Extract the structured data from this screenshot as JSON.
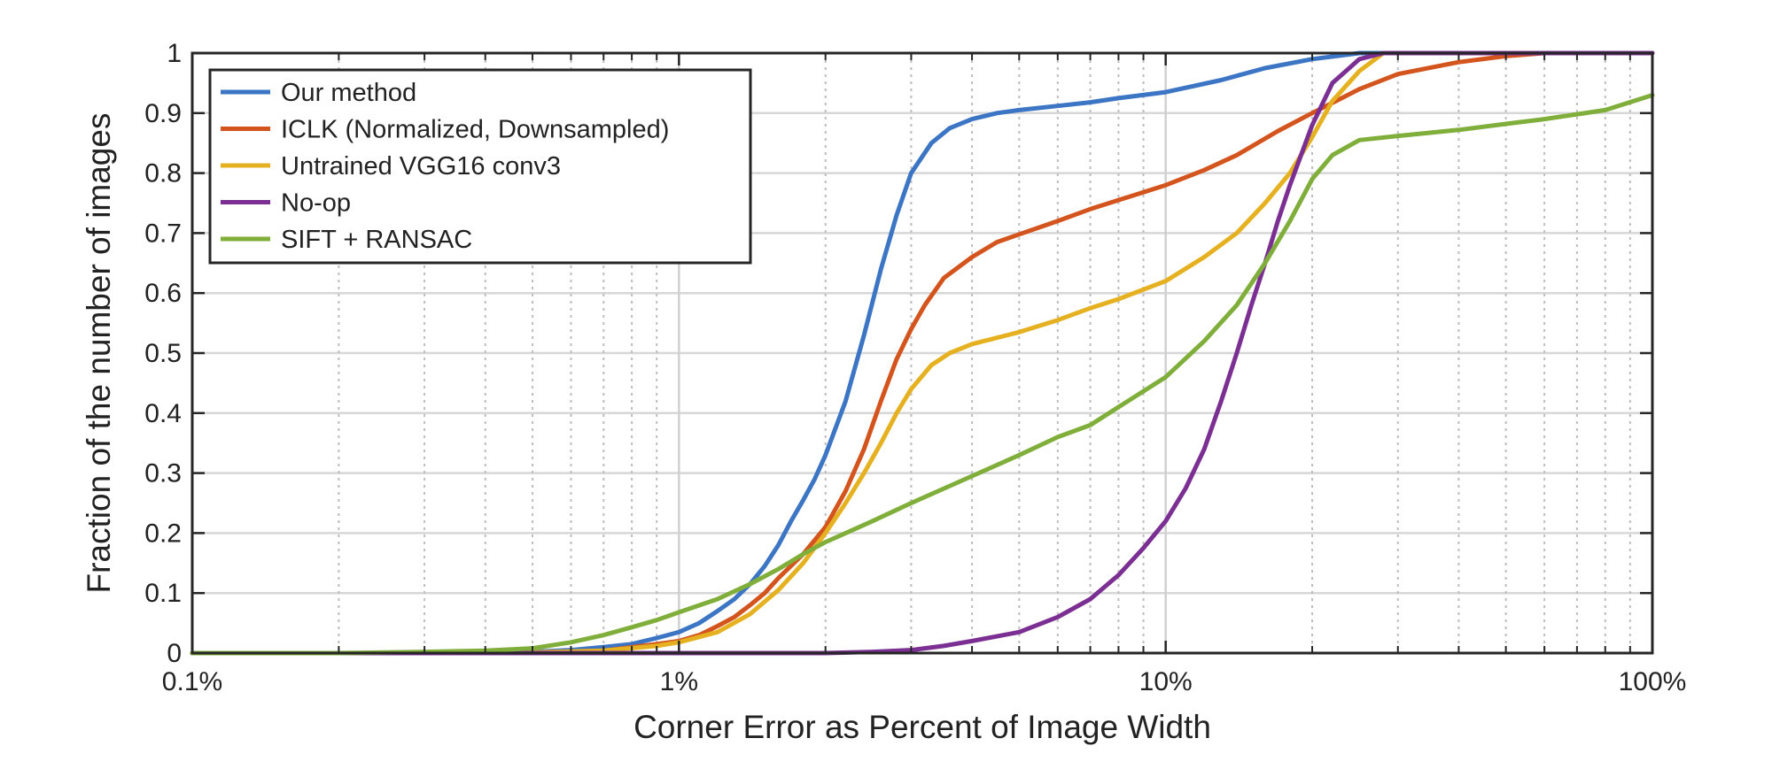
{
  "chart_data": {
    "type": "line",
    "title": "",
    "xlabel": "Corner Error as Percent of Image Width",
    "ylabel": "Fraction of the number of images",
    "xscale": "log",
    "xlim": [
      0.1,
      100
    ],
    "ylim": [
      0,
      1
    ],
    "xticks": [
      0.1,
      1,
      10,
      100
    ],
    "xtick_labels": [
      "0.1%",
      "1%",
      "10%",
      "100%"
    ],
    "yticks": [
      0,
      0.1,
      0.2,
      0.3,
      0.4,
      0.5,
      0.6,
      0.7,
      0.8,
      0.9,
      1
    ],
    "ytick_labels": [
      "0",
      "0.1",
      "0.2",
      "0.3",
      "0.4",
      "0.5",
      "0.6",
      "0.7",
      "0.8",
      "0.9",
      "1"
    ],
    "grid": true,
    "minor_grid": true,
    "legend_position": "top-left",
    "series": [
      {
        "name": "Our method",
        "color": "#3b75c4",
        "points": [
          [
            0.1,
            0
          ],
          [
            0.3,
            0
          ],
          [
            0.5,
            0.002
          ],
          [
            0.6,
            0.005
          ],
          [
            0.7,
            0.01
          ],
          [
            0.8,
            0.015
          ],
          [
            0.9,
            0.025
          ],
          [
            1.0,
            0.035
          ],
          [
            1.1,
            0.05
          ],
          [
            1.2,
            0.07
          ],
          [
            1.3,
            0.09
          ],
          [
            1.4,
            0.115
          ],
          [
            1.5,
            0.145
          ],
          [
            1.6,
            0.18
          ],
          [
            1.7,
            0.22
          ],
          [
            1.8,
            0.255
          ],
          [
            1.9,
            0.29
          ],
          [
            2.0,
            0.33
          ],
          [
            2.2,
            0.42
          ],
          [
            2.4,
            0.53
          ],
          [
            2.6,
            0.64
          ],
          [
            2.8,
            0.73
          ],
          [
            3.0,
            0.8
          ],
          [
            3.3,
            0.85
          ],
          [
            3.6,
            0.875
          ],
          [
            4.0,
            0.89
          ],
          [
            4.5,
            0.9
          ],
          [
            5,
            0.905
          ],
          [
            6,
            0.912
          ],
          [
            7,
            0.918
          ],
          [
            8,
            0.925
          ],
          [
            10,
            0.935
          ],
          [
            13,
            0.955
          ],
          [
            16,
            0.975
          ],
          [
            20,
            0.99
          ],
          [
            25,
            1.0
          ],
          [
            100,
            1.0
          ]
        ]
      },
      {
        "name": "ICLK (Normalized, Downsampled)",
        "color": "#d4541d",
        "points": [
          [
            0.1,
            0
          ],
          [
            0.3,
            0
          ],
          [
            0.5,
            0.001
          ],
          [
            0.7,
            0.004
          ],
          [
            0.9,
            0.015
          ],
          [
            1.0,
            0.02
          ],
          [
            1.1,
            0.03
          ],
          [
            1.2,
            0.045
          ],
          [
            1.3,
            0.06
          ],
          [
            1.4,
            0.08
          ],
          [
            1.5,
            0.1
          ],
          [
            1.6,
            0.125
          ],
          [
            1.8,
            0.165
          ],
          [
            2.0,
            0.21
          ],
          [
            2.2,
            0.27
          ],
          [
            2.4,
            0.34
          ],
          [
            2.6,
            0.42
          ],
          [
            2.8,
            0.49
          ],
          [
            3.0,
            0.54
          ],
          [
            3.2,
            0.58
          ],
          [
            3.5,
            0.625
          ],
          [
            4.0,
            0.66
          ],
          [
            4.5,
            0.685
          ],
          [
            5,
            0.698
          ],
          [
            6,
            0.72
          ],
          [
            7,
            0.74
          ],
          [
            8,
            0.755
          ],
          [
            10,
            0.78
          ],
          [
            12,
            0.805
          ],
          [
            14,
            0.83
          ],
          [
            17,
            0.87
          ],
          [
            20,
            0.9
          ],
          [
            25,
            0.94
          ],
          [
            30,
            0.965
          ],
          [
            40,
            0.985
          ],
          [
            50,
            0.995
          ],
          [
            60,
            1.0
          ],
          [
            100,
            1.0
          ]
        ]
      },
      {
        "name": "Untrained VGG16 conv3",
        "color": "#e6b120",
        "points": [
          [
            0.1,
            0
          ],
          [
            0.3,
            0
          ],
          [
            0.5,
            0.001
          ],
          [
            0.7,
            0.004
          ],
          [
            0.9,
            0.012
          ],
          [
            1.0,
            0.018
          ],
          [
            1.2,
            0.035
          ],
          [
            1.4,
            0.065
          ],
          [
            1.6,
            0.105
          ],
          [
            1.8,
            0.15
          ],
          [
            2.0,
            0.2
          ],
          [
            2.2,
            0.25
          ],
          [
            2.4,
            0.3
          ],
          [
            2.6,
            0.35
          ],
          [
            2.8,
            0.4
          ],
          [
            3.0,
            0.44
          ],
          [
            3.3,
            0.48
          ],
          [
            3.6,
            0.5
          ],
          [
            4.0,
            0.515
          ],
          [
            5,
            0.535
          ],
          [
            6,
            0.555
          ],
          [
            7,
            0.575
          ],
          [
            8,
            0.59
          ],
          [
            10,
            0.62
          ],
          [
            12,
            0.66
          ],
          [
            14,
            0.7
          ],
          [
            16,
            0.75
          ],
          [
            18,
            0.8
          ],
          [
            20,
            0.86
          ],
          [
            22,
            0.92
          ],
          [
            25,
            0.97
          ],
          [
            28,
            1.0
          ],
          [
            100,
            1.0
          ]
        ]
      },
      {
        "name": "No-op",
        "color": "#7b2f92",
        "points": [
          [
            0.1,
            0
          ],
          [
            2.0,
            0
          ],
          [
            2.5,
            0.002
          ],
          [
            3.0,
            0.005
          ],
          [
            3.5,
            0.012
          ],
          [
            4.0,
            0.02
          ],
          [
            5,
            0.035
          ],
          [
            6,
            0.06
          ],
          [
            7,
            0.09
          ],
          [
            8,
            0.13
          ],
          [
            9,
            0.175
          ],
          [
            10,
            0.22
          ],
          [
            11,
            0.275
          ],
          [
            12,
            0.34
          ],
          [
            13,
            0.42
          ],
          [
            14,
            0.5
          ],
          [
            15,
            0.58
          ],
          [
            16,
            0.65
          ],
          [
            17,
            0.72
          ],
          [
            18,
            0.78
          ],
          [
            20,
            0.88
          ],
          [
            22,
            0.95
          ],
          [
            25,
            0.99
          ],
          [
            28,
            1.0
          ],
          [
            100,
            1.0
          ]
        ]
      },
      {
        "name": "SIFT + RANSAC",
        "color": "#7faf3a",
        "points": [
          [
            0.1,
            0
          ],
          [
            0.2,
            0
          ],
          [
            0.3,
            0.002
          ],
          [
            0.4,
            0.004
          ],
          [
            0.5,
            0.008
          ],
          [
            0.6,
            0.018
          ],
          [
            0.7,
            0.03
          ],
          [
            0.8,
            0.043
          ],
          [
            0.9,
            0.055
          ],
          [
            1.0,
            0.068
          ],
          [
            1.2,
            0.09
          ],
          [
            1.4,
            0.115
          ],
          [
            1.6,
            0.14
          ],
          [
            1.8,
            0.165
          ],
          [
            2.0,
            0.185
          ],
          [
            2.5,
            0.22
          ],
          [
            3.0,
            0.25
          ],
          [
            4.0,
            0.295
          ],
          [
            5,
            0.33
          ],
          [
            6,
            0.36
          ],
          [
            7,
            0.38
          ],
          [
            8,
            0.41
          ],
          [
            10,
            0.46
          ],
          [
            12,
            0.52
          ],
          [
            14,
            0.58
          ],
          [
            16,
            0.65
          ],
          [
            18,
            0.72
          ],
          [
            20,
            0.79
          ],
          [
            22,
            0.83
          ],
          [
            25,
            0.855
          ],
          [
            30,
            0.862
          ],
          [
            40,
            0.872
          ],
          [
            50,
            0.882
          ],
          [
            60,
            0.89
          ],
          [
            80,
            0.905
          ],
          [
            100,
            0.93
          ]
        ]
      }
    ]
  }
}
